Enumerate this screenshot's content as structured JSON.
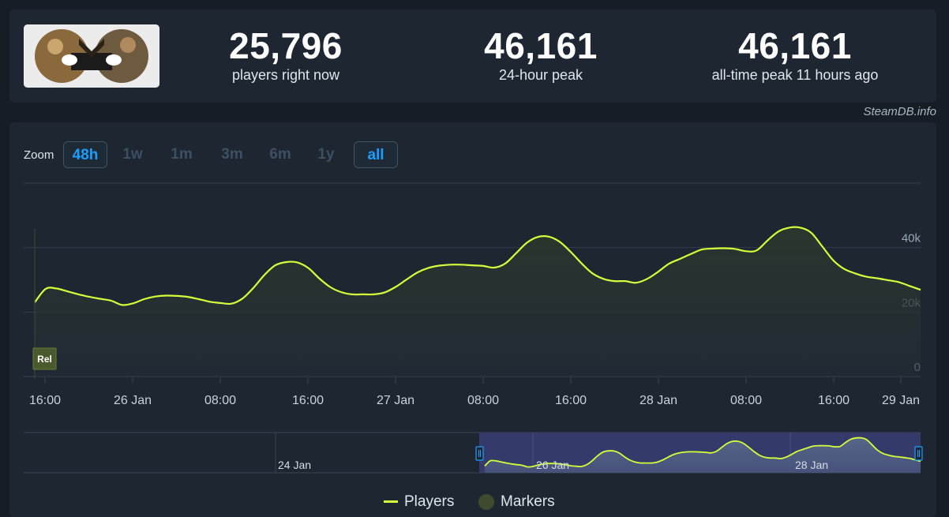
{
  "stats": [
    {
      "value": "25,796",
      "label": "players right now"
    },
    {
      "value": "46,161",
      "label": "24-hour peak"
    },
    {
      "value": "46,161",
      "label": "all-time peak 11 hours ago"
    }
  ],
  "credit": "SteamDB.info",
  "zoom": {
    "label": "Zoom",
    "options": [
      "48h",
      "1w",
      "1m",
      "3m",
      "6m",
      "1y",
      "all"
    ],
    "selected": [
      "48h",
      "all"
    ]
  },
  "colors": {
    "line": "#d4ff3a",
    "background": "#1e2631",
    "navigator_fill": "#3a3f7a"
  },
  "chart_data": {
    "type": "line",
    "series": [
      {
        "name": "Players",
        "x": [
          0,
          1,
          2,
          3,
          4,
          5,
          6,
          7,
          8,
          9,
          10,
          11,
          12,
          13,
          14,
          15,
          16,
          17,
          18,
          19,
          20,
          21,
          22,
          23,
          24,
          25,
          26,
          27,
          28,
          29,
          30,
          31,
          32,
          33,
          34,
          35,
          36,
          37,
          38,
          39,
          40,
          41,
          42,
          43,
          44,
          45,
          46,
          47,
          48,
          49,
          50,
          51,
          52,
          53,
          54,
          55,
          56,
          57,
          58,
          59,
          60,
          61,
          62,
          63,
          64,
          65,
          66,
          67,
          68,
          69,
          70,
          71,
          72,
          73,
          74,
          75,
          76,
          77,
          78,
          79,
          80,
          81
        ],
        "values": [
          23000,
          27200,
          27300,
          26400,
          25500,
          24700,
          24100,
          23500,
          22200,
          22700,
          24000,
          24800,
          25100,
          25000,
          24700,
          24000,
          23200,
          22800,
          22600,
          24200,
          27500,
          31500,
          34500,
          35500,
          35400,
          33700,
          30500,
          27800,
          26200,
          25500,
          25500,
          25500,
          26100,
          27800,
          30100,
          32300,
          33700,
          34400,
          34700,
          34700,
          34500,
          34300,
          33800,
          35000,
          38200,
          41500,
          43300,
          43400,
          41800,
          38700,
          35100,
          32000,
          30300,
          29600,
          29600,
          29100,
          30300,
          32500,
          35000,
          36500,
          38000,
          39400,
          39700,
          39800,
          39600,
          38900,
          39100,
          42200,
          45000,
          46200,
          46200,
          44600,
          40400,
          36100,
          33400,
          32000,
          31000,
          30500,
          29900,
          29300,
          28100,
          26900
        ]
      }
    ],
    "x_ticks": [
      "16:00",
      "26 Jan",
      "08:00",
      "16:00",
      "27 Jan",
      "08:00",
      "16:00",
      "28 Jan",
      "08:00",
      "16:00",
      "29 Jan"
    ],
    "y_ticks": [
      "0",
      "20k",
      "40k"
    ],
    "ylim": [
      0,
      60000
    ],
    "marker": {
      "label": "Rel"
    },
    "navigator_ticks": [
      "24 Jan",
      "26 Jan",
      "28 Jan"
    ],
    "legend": [
      {
        "label": "Players",
        "color": "#d4ff3a"
      },
      {
        "label": "Markers",
        "color": "#3f4a2e"
      }
    ],
    "grid": true
  }
}
